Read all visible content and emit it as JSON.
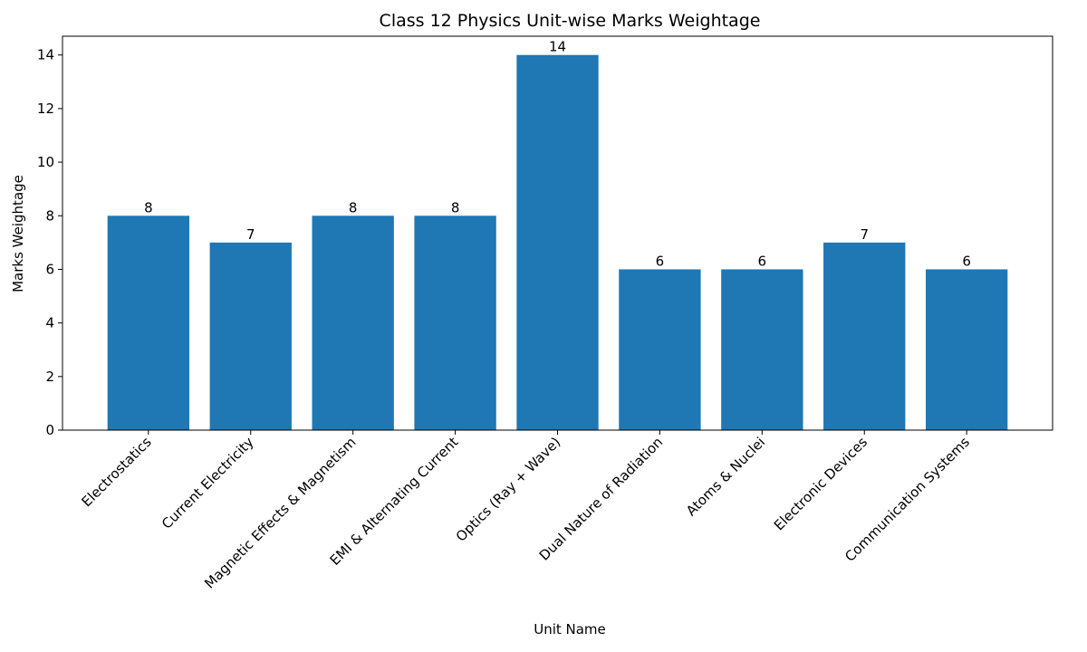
{
  "chart_data": {
    "type": "bar",
    "title": "Class 12 Physics Unit-wise Marks Weightage",
    "x_label": "Unit Name",
    "y_label": "Marks Weightage",
    "categories": [
      "Electrostatics",
      "Current Electricity",
      "Magnetic Effects & Magnetism",
      "EMI & Alternating Current",
      "Optics (Ray + Wave)",
      "Dual Nature of Radiation",
      "Atoms & Nuclei",
      "Electronic Devices",
      "Communication Systems"
    ],
    "values": [
      8,
      7,
      8,
      8,
      14,
      6,
      6,
      7,
      6
    ],
    "color": "#1f77b4",
    "ylim": [
      0,
      14.7
    ],
    "yticks": [
      0,
      2,
      4,
      6,
      8,
      10,
      12,
      14
    ],
    "grid": false
  }
}
